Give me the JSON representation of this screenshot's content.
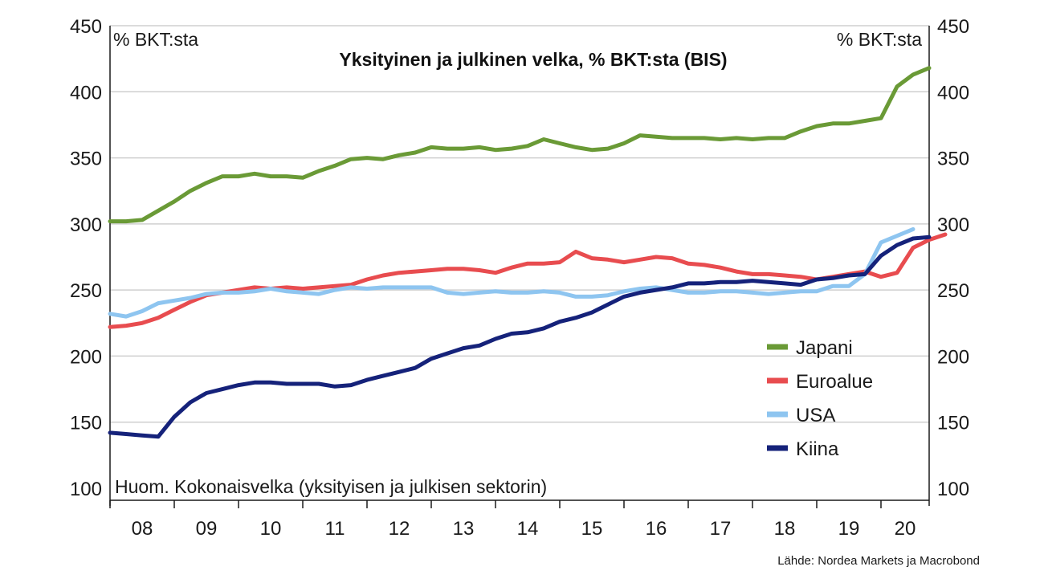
{
  "chart_data": {
    "type": "line",
    "title": "Yksityinen ja julkinen velka, % BKT:sta (BIS)",
    "ylabel_left": "% BKT:sta",
    "ylabel_right": "% BKT:sta",
    "note": "Huom. Kokonaisvelka (yksityisen ja julkisen sektorin)",
    "source": "Lähde: Nordea Markets ja Macrobond",
    "ylim": [
      100,
      450
    ],
    "yticks": [
      100,
      150,
      200,
      250,
      300,
      350,
      400,
      450
    ],
    "xlim": [
      2008.0,
      2020.75
    ],
    "xtick_labels": [
      "08",
      "09",
      "10",
      "11",
      "12",
      "13",
      "14",
      "15",
      "16",
      "17",
      "18",
      "19",
      "20"
    ],
    "x_start": 2008.0,
    "x_step": 0.25,
    "grid": true,
    "legend_position": "right-middle",
    "series": [
      {
        "name": "Japani",
        "color": "#6a9a36",
        "values": [
          302,
          302,
          303,
          310,
          317,
          325,
          331,
          336,
          336,
          338,
          336,
          336,
          335,
          340,
          344,
          349,
          350,
          349,
          352,
          354,
          358,
          357,
          357,
          358,
          356,
          357,
          359,
          364,
          361,
          358,
          356,
          357,
          361,
          367,
          366,
          365,
          365,
          365,
          364,
          365,
          364,
          365,
          365,
          370,
          374,
          376,
          376,
          378,
          380,
          404,
          413,
          418
        ]
      },
      {
        "name": "Euroalue",
        "color": "#e84c4f",
        "values": [
          222,
          223,
          225,
          229,
          235,
          241,
          246,
          248,
          250,
          252,
          251,
          252,
          251,
          252,
          253,
          254,
          258,
          261,
          263,
          264,
          265,
          266,
          266,
          265,
          263,
          267,
          270,
          270,
          271,
          279,
          274,
          273,
          271,
          273,
          275,
          274,
          270,
          269,
          267,
          264,
          262,
          262,
          261,
          260,
          258,
          260,
          262,
          264,
          260,
          263,
          282,
          288,
          292
        ]
      },
      {
        "name": "USA",
        "color": "#8ec5f0",
        "values": [
          232,
          230,
          234,
          240,
          242,
          244,
          247,
          248,
          248,
          249,
          251,
          249,
          248,
          247,
          250,
          252,
          251,
          252,
          252,
          252,
          252,
          248,
          247,
          248,
          249,
          248,
          248,
          249,
          248,
          245,
          245,
          246,
          249,
          251,
          252,
          250,
          248,
          248,
          249,
          249,
          248,
          247,
          248,
          249,
          249,
          253,
          253,
          262,
          286,
          291,
          296
        ]
      },
      {
        "name": "Kiina",
        "color": "#15227a",
        "values": [
          142,
          141,
          140,
          139,
          154,
          165,
          172,
          175,
          178,
          180,
          180,
          179,
          179,
          179,
          177,
          178,
          182,
          185,
          188,
          191,
          198,
          202,
          206,
          208,
          213,
          217,
          218,
          221,
          226,
          229,
          233,
          239,
          245,
          248,
          250,
          252,
          255,
          255,
          256,
          256,
          257,
          256,
          255,
          254,
          258,
          259,
          261,
          262,
          276,
          284,
          289,
          290
        ]
      }
    ]
  }
}
